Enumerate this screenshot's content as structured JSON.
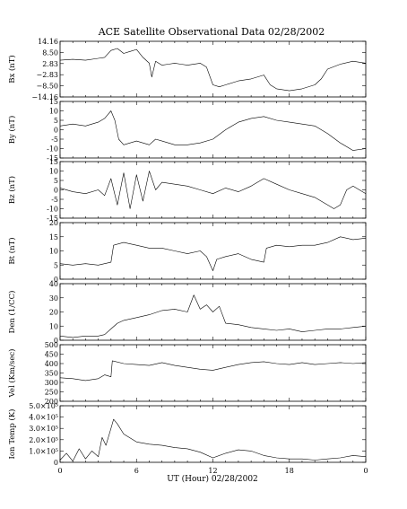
{
  "chart_data": {
    "type": "line",
    "title": "ACE Satellite Observational Data   02/28/2002",
    "xlabel": "UT (Hour)   02/28/2002",
    "x_ticks": [
      "0",
      "6",
      "12",
      "18",
      "0"
    ],
    "xlim": [
      0,
      24
    ],
    "panels": [
      {
        "ylabel": "Bx (nT)",
        "ylim": [
          -14.16,
          14.16
        ],
        "yticks": [
          14.16,
          8.5,
          2.83,
          -2.83,
          -8.5,
          -14.16
        ],
        "ytick_labels": [
          "14.16",
          "8.50",
          "2.83",
          "−2.83",
          "−8.50",
          "−14.16"
        ],
        "x": [
          0,
          1,
          2,
          3,
          3.5,
          4,
          4.5,
          5,
          5.5,
          6,
          6.5,
          7,
          7.2,
          7.5,
          8,
          8.5,
          9,
          9.5,
          10,
          11,
          11.5,
          12,
          12.5,
          13,
          14,
          15,
          16,
          16.5,
          17,
          18,
          19,
          20,
          20.5,
          21,
          22,
          23,
          24
        ],
        "values": [
          4.5,
          5,
          4.5,
          5.5,
          6,
          9.5,
          10.5,
          8,
          9,
          10,
          6,
          3,
          -4,
          4,
          2,
          2.5,
          3,
          2.5,
          2,
          3,
          1,
          -8,
          -9,
          -8,
          -6,
          -5,
          -3,
          -8,
          -10,
          -11,
          -10,
          -8,
          -5,
          0,
          2.5,
          4,
          3
        ]
      },
      {
        "ylabel": "By (nT)",
        "ylim": [
          -15,
          15
        ],
        "yticks": [
          15,
          10,
          5,
          0,
          -5,
          -10,
          -15
        ],
        "x": [
          0,
          1,
          2,
          3,
          3.5,
          4,
          4.3,
          4.6,
          5,
          6,
          7,
          7.5,
          8,
          9,
          10,
          11,
          12,
          13,
          14,
          15,
          16,
          17,
          18,
          19,
          20,
          21,
          22,
          23,
          24
        ],
        "values": [
          2,
          3,
          2,
          4,
          6,
          10,
          5,
          -5,
          -8,
          -6,
          -8,
          -5,
          -6,
          -8,
          -8,
          -7,
          -5,
          0,
          4,
          6,
          7,
          5,
          4,
          3,
          2,
          -2,
          -7,
          -11,
          -10
        ]
      },
      {
        "ylabel": "Bz (nT)",
        "ylim": [
          -15,
          15
        ],
        "yticks": [
          15,
          10,
          5,
          0,
          -5,
          -10,
          -15
        ],
        "x": [
          0,
          1,
          2,
          3,
          3.5,
          4,
          4.5,
          5,
          5.5,
          6,
          6.5,
          7,
          7.5,
          8,
          9,
          10,
          11,
          12,
          13,
          14,
          15,
          16,
          17,
          18,
          19,
          20,
          21,
          21.5,
          22,
          22.5,
          23,
          24
        ],
        "values": [
          1,
          -1,
          -2,
          0,
          -3,
          6,
          -8,
          9,
          -10,
          8,
          -6,
          10,
          0,
          4,
          3,
          2,
          0,
          -2,
          1,
          -1,
          2,
          6,
          3,
          0,
          -2,
          -4,
          -8,
          -10,
          -8,
          0,
          2,
          -2
        ]
      },
      {
        "ylabel": "Bt (nT)",
        "ylim": [
          0,
          20
        ],
        "yticks": [
          20,
          15,
          10,
          5,
          0
        ],
        "x": [
          0,
          1,
          2,
          3,
          3.5,
          4,
          4.2,
          5,
          6,
          7,
          8,
          9,
          10,
          11,
          11.5,
          12,
          12.3,
          13,
          14,
          15,
          16,
          16.2,
          17,
          18,
          19,
          20,
          21,
          22,
          23,
          24
        ],
        "values": [
          5.5,
          5,
          5.5,
          5,
          5.5,
          6,
          12,
          13,
          12,
          11,
          11,
          10,
          9,
          10,
          8,
          3,
          7,
          8,
          9,
          7,
          6,
          11,
          12,
          11.5,
          12,
          12,
          13,
          15,
          14,
          14.5
        ]
      },
      {
        "ylabel": "Den (1/CC)",
        "ylim": [
          0,
          40
        ],
        "yticks": [
          40,
          30,
          20,
          10,
          0
        ],
        "x": [
          0,
          1,
          2,
          3,
          3.5,
          4,
          4.5,
          5,
          6,
          7,
          8,
          9,
          10,
          10.5,
          11,
          11.5,
          12,
          12.5,
          13,
          14,
          15,
          16,
          17,
          18,
          19,
          20,
          21,
          22,
          23,
          24
        ],
        "values": [
          3,
          2,
          3,
          3,
          4,
          8,
          12,
          14,
          16,
          18,
          21,
          22,
          20,
          32,
          22,
          25,
          20,
          24,
          12,
          11,
          9,
          8,
          7,
          8,
          6,
          7,
          8,
          8,
          9,
          10
        ]
      },
      {
        "ylabel": "Vel (Km/sec)",
        "ylim": [
          200,
          500
        ],
        "yticks": [
          500,
          450,
          400,
          350,
          300,
          250,
          200
        ],
        "x": [
          0,
          1,
          2,
          3,
          3.5,
          4,
          4.1,
          5,
          6,
          7,
          8,
          9,
          10,
          11,
          12,
          13,
          14,
          15,
          16,
          17,
          18,
          19,
          20,
          21,
          22,
          23,
          24
        ],
        "values": [
          325,
          320,
          310,
          320,
          340,
          330,
          415,
          400,
          395,
          390,
          405,
          390,
          380,
          370,
          365,
          380,
          395,
          405,
          410,
          400,
          395,
          405,
          395,
          400,
          405,
          400,
          405
        ]
      },
      {
        "ylabel": "Ion Temp (K)",
        "ylim": [
          0,
          500000
        ],
        "yticks": [
          500000,
          400000,
          300000,
          200000,
          100000,
          0
        ],
        "ytick_labels": [
          "5.0×10⁵",
          "4.0×10⁵",
          "3.0×10⁵",
          "2.0×10⁵",
          "1.0×10⁵",
          "0"
        ],
        "x": [
          0,
          0.5,
          1,
          1.5,
          2,
          2.5,
          3,
          3.3,
          3.6,
          4,
          4.2,
          4.5,
          5,
          6,
          7,
          8,
          9,
          10,
          11,
          12,
          13,
          14,
          15,
          16,
          17,
          18,
          19,
          20,
          21,
          22,
          23,
          24
        ],
        "values": [
          20000,
          80000,
          10000,
          120000,
          30000,
          100000,
          50000,
          220000,
          150000,
          300000,
          380000,
          340000,
          250000,
          180000,
          160000,
          150000,
          130000,
          120000,
          90000,
          40000,
          80000,
          110000,
          100000,
          60000,
          40000,
          30000,
          30000,
          20000,
          30000,
          40000,
          60000,
          50000
        ]
      }
    ]
  }
}
